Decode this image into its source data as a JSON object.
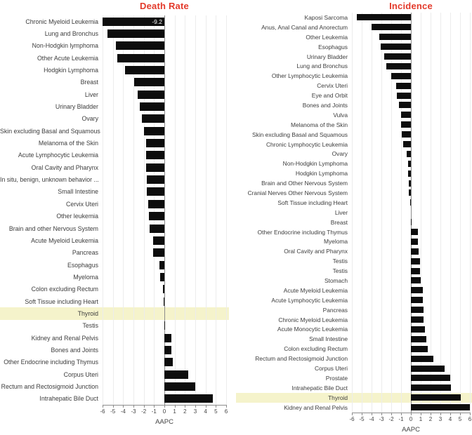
{
  "figure": {
    "background": "#ffffff",
    "axis_color": "#8c8c8c",
    "grid_color": "#ececec",
    "label_color": "#3d3d3d"
  },
  "chart_data": [
    {
      "type": "bar",
      "orientation": "horizontal",
      "title": "Death Rate",
      "title_color": "#e33a2b",
      "xlabel": "AAPC",
      "xlim": [
        -6,
        6
      ],
      "tick_labels": [
        "-6",
        "-5",
        "-4",
        "-3",
        "-2",
        "-1",
        "0",
        "1",
        "2",
        "3",
        "4",
        "5",
        "6"
      ],
      "grid": true,
      "bar_color": "#0d0d0d",
      "highlight_color": "#f5f3cb",
      "rows": [
        {
          "label": "Chronic Myeloid Leukemia",
          "value": -9.2,
          "clipped": true,
          "bar_label": "-9.2"
        },
        {
          "label": "Lung and Bronchus",
          "value": -5.5
        },
        {
          "label": "Non-Hodgkin lymphoma",
          "value": -4.7
        },
        {
          "label": "Other Acute Leukemia",
          "value": -4.6
        },
        {
          "label": "Hodgkin Lymphoma",
          "value": -3.8
        },
        {
          "label": "Breast",
          "value": -2.9
        },
        {
          "label": "Liver",
          "value": -2.6
        },
        {
          "label": "Urinary Bladder",
          "value": -2.4
        },
        {
          "label": "Ovary",
          "value": -2.2
        },
        {
          "label": "Skin excluding Basal and Squamous",
          "value": -2.0
        },
        {
          "label": "Melanoma of the Skin",
          "value": -1.8
        },
        {
          "label": "Acute Lymphocytic Leukemia",
          "value": -1.8
        },
        {
          "label": "Oral Cavity and Pharynx",
          "value": -1.8
        },
        {
          "label": "In situ, benign, unknown behavior ...",
          "value": -1.7
        },
        {
          "label": "Small Intestine",
          "value": -1.7
        },
        {
          "label": "Cervix Uteri",
          "value": -1.6
        },
        {
          "label": "Other leukemia",
          "value": -1.5
        },
        {
          "label": "Brain and other Nervous System",
          "value": -1.4
        },
        {
          "label": "Acute Myeloid Leukemia",
          "value": -1.1
        },
        {
          "label": "Pancreas",
          "value": -1.1
        },
        {
          "label": "Esophagus",
          "value": -0.5
        },
        {
          "label": "Myeloma",
          "value": -0.4
        },
        {
          "label": "Colon excluding Rectum",
          "value": -0.15
        },
        {
          "label": "Soft Tissue including Heart",
          "value": -0.05
        },
        {
          "label": "Thyroid",
          "value": 0.0,
          "highlight": true
        },
        {
          "label": "Testis",
          "value": 0.1
        },
        {
          "label": "Kidney and Renal Pelvis",
          "value": 0.7
        },
        {
          "label": "Bones and Joints",
          "value": 0.7
        },
        {
          "label": "Other Endocrine including Thymus",
          "value": 0.8
        },
        {
          "label": "Corpus Uteri",
          "value": 2.3
        },
        {
          "label": "Rectum and Rectosigmoid Junction",
          "value": 3.0
        },
        {
          "label": "Intrahepatic Bile Duct",
          "value": 4.7
        }
      ]
    },
    {
      "type": "bar",
      "orientation": "horizontal",
      "title": "Incidence",
      "title_color": "#e33a2b",
      "xlabel": "AAPC",
      "xlim": [
        -6,
        6
      ],
      "tick_labels": [
        "-6",
        "-5",
        "-4",
        "-3",
        "-2",
        "-1",
        "0",
        "1",
        "2",
        "3",
        "4",
        "5",
        "6"
      ],
      "grid": true,
      "bar_color": "#0d0d0d",
      "highlight_color": "#f5f3cb",
      "rows": [
        {
          "label": "Kaposi Sarcoma",
          "value": -5.5
        },
        {
          "label": "Anus, Anal Canal and Anorectum",
          "value": -4.0
        },
        {
          "label": "Other Leukemia",
          "value": -3.2
        },
        {
          "label": "Esophagus",
          "value": -3.1
        },
        {
          "label": "Urinary Bladder",
          "value": -2.7
        },
        {
          "label": "Lung and Bronchus",
          "value": -2.5
        },
        {
          "label": "Other Lymphocytic Leukemia",
          "value": -2.0
        },
        {
          "label": "Cervix Uteri",
          "value": -1.5
        },
        {
          "label": "Eye and Orbit",
          "value": -1.4
        },
        {
          "label": "Bones and Joints",
          "value": -1.2
        },
        {
          "label": "Vulva",
          "value": -1.0
        },
        {
          "label": "Melanoma of the Skin",
          "value": -1.0
        },
        {
          "label": "Skin excluding Basal and Squamous",
          "value": -0.9
        },
        {
          "label": "Chronic Lymphocytic Leukemia",
          "value": -0.8
        },
        {
          "label": "Ovary",
          "value": -0.4
        },
        {
          "label": "Non-Hodgkin Lymphoma",
          "value": -0.3
        },
        {
          "label": "Hodgkin Lymphoma",
          "value": -0.3
        },
        {
          "label": "Brain and Other Nervous System",
          "value": -0.25
        },
        {
          "label": "Cranial Nerves Other Nervous System",
          "value": -0.2
        },
        {
          "label": "Soft Tissue including Heart",
          "value": -0.1
        },
        {
          "label": "Liver",
          "value": 0.0
        },
        {
          "label": "Breast",
          "value": 0.1
        },
        {
          "label": "Other Endocrine including Thymus",
          "value": 0.7
        },
        {
          "label": "Myeloma",
          "value": 0.7
        },
        {
          "label": "Oral Cavity and Pharynx",
          "value": 0.8
        },
        {
          "label": "Testis",
          "value": 0.9
        },
        {
          "label": "Testis",
          "value": 0.9
        },
        {
          "label": "Stomach",
          "value": 1.0
        },
        {
          "label": "Acute Myeloid Leukemia",
          "value": 1.2
        },
        {
          "label": "Acute Lymphocytic Leukemia",
          "value": 1.2
        },
        {
          "label": "Pancreas",
          "value": 1.3
        },
        {
          "label": "Chronic Myeloid Leukemia",
          "value": 1.3
        },
        {
          "label": "Acute Monocytic Leukemia",
          "value": 1.4
        },
        {
          "label": "Small Intestine",
          "value": 1.6
        },
        {
          "label": "Colon excluding Rectum",
          "value": 1.7
        },
        {
          "label": "Rectum and Rectosigmoid Junction",
          "value": 2.3
        },
        {
          "label": "Corpus Uteri",
          "value": 3.4
        },
        {
          "label": "Prostate",
          "value": 4.0
        },
        {
          "label": "Intrahepatic Bile Duct",
          "value": 4.1
        },
        {
          "label": "Thyroid",
          "value": 5.1,
          "highlight": true
        },
        {
          "label": "Kidney and Renal Pelvis",
          "value": 6.0
        }
      ]
    }
  ]
}
